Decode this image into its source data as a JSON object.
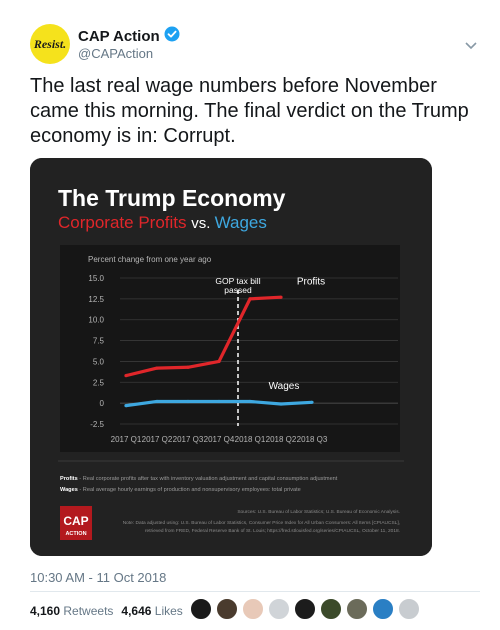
{
  "account": {
    "avatar_text": "Resist.",
    "name": "CAP Action",
    "handle": "@CAPAction"
  },
  "tweet": {
    "text": "The last real wage numbers before November came this morning. The final verdict on the Trump economy is in: Corrupt.",
    "timestamp": "10:30 AM - 11 Oct 2018",
    "retweets": "4,160",
    "retweets_label": "Retweets",
    "likes": "4,646",
    "likes_label": "Likes"
  },
  "likers": [
    "#1a1a1a",
    "#4a3b2e",
    "#e8c9b8",
    "#d0d4d8",
    "#1c1c1c",
    "#3b4a2a",
    "#6b6b5a",
    "#2a7fc4",
    "#c8ccd0"
  ],
  "chart_data": {
    "type": "line",
    "title": "The Trump Economy",
    "subtitle_a": "Corporate Profits",
    "subtitle_vs": "vs.",
    "subtitle_b": "Wages",
    "ylabel": "Percent change from one year ago",
    "categories": [
      "2017 Q1",
      "2017 Q2",
      "2017 Q3",
      "2017 Q4",
      "2018 Q1",
      "2018 Q2",
      "2018 Q3"
    ],
    "yticks": [
      "15.0",
      "12.5",
      "10.0",
      "7.5",
      "5.0",
      "2.5",
      "0",
      "-2.5"
    ],
    "ylim": [
      -2.5,
      15.0
    ],
    "annotation_line1": "GOP tax bill",
    "annotation_line2": "passed",
    "series": [
      {
        "name": "Profits",
        "color": "#e0262a",
        "values": [
          3.3,
          4.2,
          4.3,
          5.0,
          12.5,
          12.7,
          null
        ]
      },
      {
        "name": "Wages",
        "color": "#3ea8e0",
        "values": [
          -0.3,
          0.2,
          0.2,
          0.2,
          0.2,
          -0.1,
          0.1
        ]
      }
    ],
    "notes": {
      "profits_key": "Profits",
      "profits_def": "- Real corporate profits after tax with inventory valuation adjustment and capital consumption adjustment",
      "wages_key": "Wages",
      "wages_def": "- Real average hourly earnings of production and nonsupervisory employees: total private",
      "sources": "Sources: U.S. Bureau of Labor Statistics; U.S. Bureau of Economic Analysis.",
      "note1": "Note: Data adjusted using: U.S. Bureau of Labor Statistics, Consumer Price Index for All Urban Consumers: All Items [CPIAUCSL],",
      "note2": "retrieved from FRED, Federal Reserve Bank of St. Louis; https://fred.stlouisfed.org/series/CPIAUCSL, October 11, 2018."
    },
    "logo_line1": "CAP",
    "logo_line2": "ACTION"
  }
}
